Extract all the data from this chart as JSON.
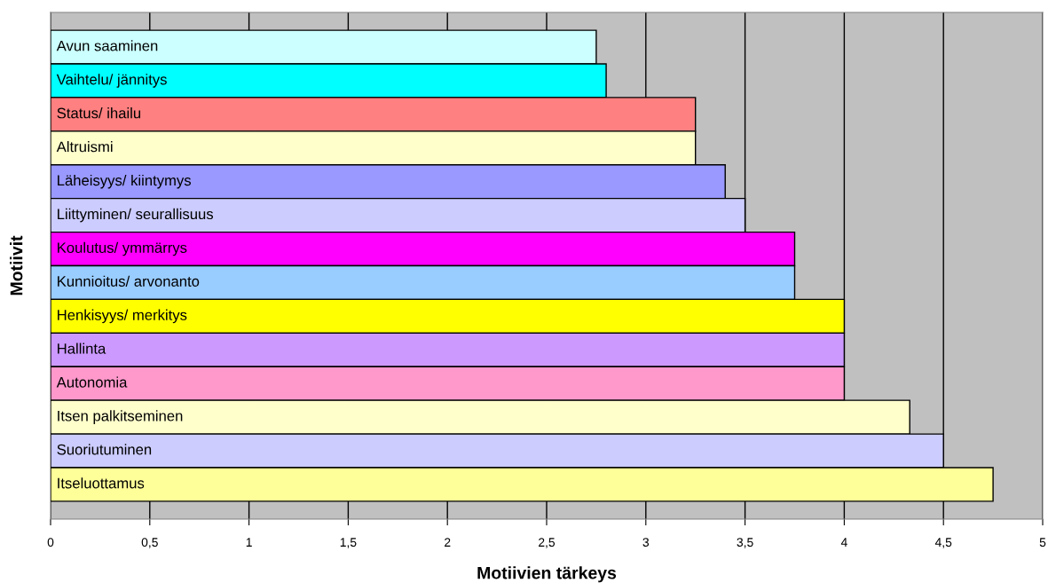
{
  "chart_data": {
    "type": "bar",
    "orientation": "horizontal",
    "xlabel": "Motiivien tärkeys",
    "ylabel": "Motiivit",
    "categories": [
      "Avun saaminen",
      "Vaihtelu/ jännitys",
      "Status/ ihailu",
      "Altruismi",
      "Läheisyys/ kiintymys",
      "Liittyminen/ seurallisuus",
      "Koulutus/ ymmärrys",
      "Kunnioitus/ arvonanto",
      "Henkisyys/ merkitys",
      "Hallinta",
      "Autonomia",
      "Itsen palkitseminen",
      "Suoriutuminen",
      "Itseluottamus"
    ],
    "values": [
      2.75,
      2.8,
      3.25,
      3.25,
      3.4,
      3.5,
      3.75,
      3.75,
      4.0,
      4.0,
      4.0,
      4.33,
      4.5,
      4.75
    ],
    "colors": [
      "#ccffff",
      "#00ffff",
      "#ff8080",
      "#ffffcc",
      "#9999ff",
      "#ccccff",
      "#ff00ff",
      "#99ccff",
      "#ffff00",
      "#cc99ff",
      "#ff99cc",
      "#ffffcc",
      "#ccccff",
      "#ffff99"
    ],
    "xlim": [
      0,
      5
    ],
    "xticks": [
      0,
      {
        "value": 0.5,
        "label": "0,5"
      },
      1,
      {
        "value": 1.5,
        "label": "1,5"
      },
      2,
      {
        "value": 2.5,
        "label": "2,5"
      },
      3,
      {
        "value": 3.5,
        "label": "3,5"
      },
      4,
      {
        "value": 4.5,
        "label": "4,5"
      },
      5
    ],
    "grid": "x",
    "legend": false,
    "tick_labels": "x"
  }
}
